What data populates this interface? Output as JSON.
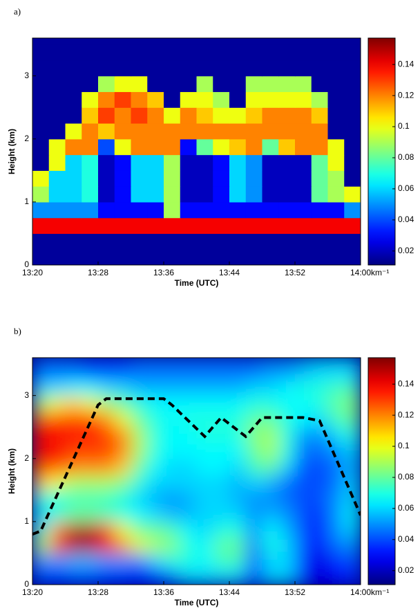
{
  "chart_data": [
    {
      "type": "heatmap",
      "label": "a)",
      "xlabel": "Time (UTC)",
      "ylabel": "Height (km)",
      "colorbar_label": "km⁻¹",
      "colormap": "jet",
      "smooth": false,
      "xlim": [
        "13:20",
        "14:00"
      ],
      "xticks": [
        "13:20",
        "13:28",
        "13:36",
        "13:44",
        "13:52",
        "14:00"
      ],
      "ylim": [
        0,
        3.6
      ],
      "yticks": [
        0,
        1,
        2,
        3
      ],
      "clim": [
        0.011,
        0.157
      ],
      "cticks": [
        0.02,
        0.04,
        0.06,
        0.08,
        0.1,
        0.12,
        0.14
      ],
      "x": [
        "13:20",
        "13:22",
        "13:24",
        "13:26",
        "13:28",
        "13:30",
        "13:32",
        "13:34",
        "13:36",
        "13:38",
        "13:40",
        "13:42",
        "13:44",
        "13:46",
        "13:48",
        "13:50",
        "13:52",
        "13:54",
        "13:56",
        "13:58",
        "14:00"
      ],
      "y": [
        0,
        0.25,
        0.5,
        0.75,
        1,
        1.25,
        1.5,
        1.75,
        2,
        2.25,
        2.5,
        2.75,
        3,
        3.25,
        3.5,
        3.6
      ],
      "z": [
        [
          0.015,
          0.015,
          0.015,
          0.015,
          0.015,
          0.015,
          0.015,
          0.015,
          0.015,
          0.015,
          0.015,
          0.015,
          0.015,
          0.015,
          0.015,
          0.015,
          0.015,
          0.015,
          0.015,
          0.015
        ],
        [
          0.015,
          0.015,
          0.015,
          0.015,
          0.015,
          0.015,
          0.015,
          0.015,
          0.015,
          0.015,
          0.015,
          0.015,
          0.015,
          0.015,
          0.015,
          0.015,
          0.015,
          0.015,
          0.015,
          0.015
        ],
        [
          0.14,
          0.14,
          0.14,
          0.14,
          0.14,
          0.14,
          0.14,
          0.14,
          0.14,
          0.14,
          0.14,
          0.14,
          0.14,
          0.14,
          0.14,
          0.14,
          0.14,
          0.14,
          0.14,
          0.14
        ],
        [
          0.05,
          0.05,
          0.05,
          0.05,
          0.03,
          0.03,
          0.03,
          0.03,
          0.09,
          0.03,
          0.03,
          0.03,
          0.03,
          0.03,
          0.03,
          0.03,
          0.03,
          0.03,
          0.03,
          0.05
        ],
        [
          0.09,
          0.06,
          0.06,
          0.07,
          0.02,
          0.03,
          0.06,
          0.06,
          0.09,
          0.02,
          0.02,
          0.03,
          0.06,
          0.05,
          0.02,
          0.02,
          0.02,
          0.08,
          0.09,
          0.1
        ],
        [
          0.1,
          0.06,
          0.06,
          0.07,
          0.02,
          0.03,
          0.06,
          0.06,
          0.09,
          0.02,
          0.02,
          0.03,
          0.06,
          0.05,
          0.02,
          0.02,
          0.02,
          0.08,
          0.09,
          0.015
        ],
        [
          0.015,
          0.1,
          0.06,
          0.07,
          0.02,
          0.03,
          0.06,
          0.06,
          0.09,
          0.02,
          0.02,
          0.03,
          0.06,
          0.05,
          0.02,
          0.02,
          0.02,
          0.08,
          0.1,
          0.015
        ],
        [
          0.015,
          0.1,
          0.12,
          0.12,
          0.04,
          0.1,
          0.12,
          0.12,
          0.12,
          0.03,
          0.08,
          0.1,
          0.11,
          0.12,
          0.08,
          0.11,
          0.12,
          0.12,
          0.1,
          0.015
        ],
        [
          0.015,
          0.015,
          0.1,
          0.12,
          0.11,
          0.12,
          0.12,
          0.12,
          0.12,
          0.12,
          0.12,
          0.12,
          0.12,
          0.12,
          0.12,
          0.12,
          0.12,
          0.12,
          0.015,
          0.015
        ],
        [
          0.015,
          0.015,
          0.015,
          0.11,
          0.13,
          0.12,
          0.13,
          0.12,
          0.1,
          0.12,
          0.11,
          0.1,
          0.1,
          0.11,
          0.12,
          0.12,
          0.12,
          0.11,
          0.015,
          0.015
        ],
        [
          0.015,
          0.015,
          0.015,
          0.1,
          0.12,
          0.13,
          0.12,
          0.11,
          0.015,
          0.1,
          0.1,
          0.09,
          0.015,
          0.1,
          0.1,
          0.1,
          0.1,
          0.09,
          0.015,
          0.015
        ],
        [
          0.015,
          0.015,
          0.015,
          0.015,
          0.09,
          0.1,
          0.1,
          0.015,
          0.015,
          0.015,
          0.09,
          0.015,
          0.015,
          0.09,
          0.09,
          0.09,
          0.09,
          0.015,
          0.015,
          0.015
        ],
        [
          0.015,
          0.015,
          0.015,
          0.015,
          0.015,
          0.015,
          0.015,
          0.015,
          0.015,
          0.015,
          0.015,
          0.015,
          0.015,
          0.015,
          0.015,
          0.015,
          0.015,
          0.015,
          0.015,
          0.015
        ],
        [
          0.015,
          0.015,
          0.015,
          0.015,
          0.015,
          0.015,
          0.015,
          0.015,
          0.015,
          0.015,
          0.015,
          0.015,
          0.015,
          0.015,
          0.015,
          0.015,
          0.015,
          0.015,
          0.015,
          0.015
        ],
        [
          0.015,
          0.015,
          0.015,
          0.015,
          0.015,
          0.015,
          0.015,
          0.015,
          0.015,
          0.015,
          0.015,
          0.015,
          0.015,
          0.015,
          0.015,
          0.015,
          0.015,
          0.015,
          0.015,
          0.015
        ]
      ]
    },
    {
      "type": "heatmap",
      "label": "b)",
      "xlabel": "Time (UTC)",
      "ylabel": "Height (km)",
      "colorbar_label": "km⁻¹",
      "colormap": "jet",
      "smooth": true,
      "xlim": [
        "13:20",
        "14:00"
      ],
      "xticks": [
        "13:20",
        "13:28",
        "13:36",
        "13:44",
        "13:52",
        "14:00"
      ],
      "ylim": [
        0,
        3.6
      ],
      "yticks": [
        0,
        1,
        2,
        3
      ],
      "clim": [
        0.011,
        0.157
      ],
      "cticks": [
        0.02,
        0.04,
        0.06,
        0.08,
        0.1,
        0.12,
        0.14
      ],
      "x": [
        "13:20",
        "13:22",
        "13:24",
        "13:26",
        "13:28",
        "13:30",
        "13:32",
        "13:34",
        "13:36",
        "13:38",
        "13:40",
        "13:42",
        "13:44",
        "13:46",
        "13:48",
        "13:50",
        "13:52",
        "13:54",
        "13:56",
        "13:58",
        "14:00"
      ],
      "y": [
        0,
        0.25,
        0.5,
        0.75,
        1,
        1.25,
        1.5,
        1.75,
        2,
        2.25,
        2.5,
        2.75,
        3,
        3.25,
        3.5,
        3.6
      ],
      "z": [
        [
          0.04,
          0.035,
          0.04,
          0.04,
          0.035,
          0.035,
          0.03,
          0.035,
          0.045,
          0.06,
          0.06,
          0.06,
          0.06,
          0.035,
          0.06,
          0.06,
          0.03,
          0.025,
          0.03,
          0.035
        ],
        [
          0.05,
          0.05,
          0.055,
          0.055,
          0.05,
          0.05,
          0.045,
          0.06,
          0.07,
          0.07,
          0.065,
          0.075,
          0.075,
          0.04,
          0.06,
          0.06,
          0.035,
          0.025,
          0.035,
          0.04
        ],
        [
          0.09,
          0.13,
          0.15,
          0.15,
          0.14,
          0.12,
          0.1,
          0.09,
          0.085,
          0.07,
          0.065,
          0.08,
          0.08,
          0.045,
          0.07,
          0.06,
          0.04,
          0.03,
          0.045,
          0.05
        ],
        [
          0.07,
          0.12,
          0.15,
          0.15,
          0.14,
          0.1,
          0.08,
          0.08,
          0.075,
          0.065,
          0.06,
          0.07,
          0.07,
          0.05,
          0.065,
          0.055,
          0.04,
          0.03,
          0.05,
          0.06
        ],
        [
          0.06,
          0.07,
          0.08,
          0.08,
          0.075,
          0.07,
          0.065,
          0.06,
          0.055,
          0.055,
          0.06,
          0.06,
          0.06,
          0.05,
          0.055,
          0.05,
          0.04,
          0.035,
          0.05,
          0.065
        ],
        [
          0.07,
          0.07,
          0.075,
          0.075,
          0.075,
          0.07,
          0.06,
          0.055,
          0.05,
          0.055,
          0.06,
          0.06,
          0.055,
          0.05,
          0.05,
          0.045,
          0.04,
          0.04,
          0.05,
          0.06
        ],
        [
          0.11,
          0.1,
          0.09,
          0.09,
          0.09,
          0.085,
          0.07,
          0.06,
          0.06,
          0.06,
          0.06,
          0.06,
          0.055,
          0.06,
          0.055,
          0.045,
          0.04,
          0.04,
          0.045,
          0.06
        ],
        [
          0.13,
          0.13,
          0.12,
          0.12,
          0.12,
          0.11,
          0.08,
          0.065,
          0.06,
          0.06,
          0.065,
          0.065,
          0.06,
          0.075,
          0.08,
          0.06,
          0.04,
          0.04,
          0.045,
          0.055
        ],
        [
          0.14,
          0.14,
          0.13,
          0.13,
          0.13,
          0.12,
          0.09,
          0.07,
          0.065,
          0.065,
          0.065,
          0.065,
          0.065,
          0.08,
          0.09,
          0.07,
          0.045,
          0.045,
          0.05,
          0.06
        ],
        [
          0.14,
          0.14,
          0.135,
          0.135,
          0.13,
          0.12,
          0.09,
          0.07,
          0.065,
          0.065,
          0.07,
          0.07,
          0.07,
          0.085,
          0.09,
          0.07,
          0.05,
          0.05,
          0.06,
          0.07
        ],
        [
          0.13,
          0.13,
          0.13,
          0.13,
          0.12,
          0.1,
          0.08,
          0.07,
          0.065,
          0.07,
          0.07,
          0.07,
          0.07,
          0.08,
          0.08,
          0.07,
          0.065,
          0.06,
          0.075,
          0.08
        ],
        [
          0.09,
          0.1,
          0.11,
          0.1,
          0.09,
          0.08,
          0.07,
          0.065,
          0.065,
          0.065,
          0.065,
          0.065,
          0.065,
          0.07,
          0.07,
          0.065,
          0.065,
          0.07,
          0.08,
          0.085
        ],
        [
          0.06,
          0.06,
          0.065,
          0.065,
          0.06,
          0.06,
          0.055,
          0.055,
          0.055,
          0.055,
          0.055,
          0.055,
          0.055,
          0.06,
          0.06,
          0.065,
          0.07,
          0.07,
          0.075,
          0.075
        ],
        [
          0.045,
          0.045,
          0.045,
          0.04,
          0.04,
          0.04,
          0.045,
          0.045,
          0.045,
          0.045,
          0.045,
          0.045,
          0.045,
          0.045,
          0.05,
          0.05,
          0.055,
          0.06,
          0.06,
          0.06
        ],
        [
          0.045,
          0.045,
          0.045,
          0.04,
          0.04,
          0.04,
          0.045,
          0.045,
          0.045,
          0.045,
          0.045,
          0.045,
          0.045,
          0.045,
          0.05,
          0.05,
          0.055,
          0.06,
          0.06,
          0.06
        ]
      ],
      "line": {
        "color": "#000000",
        "dashed": true,
        "x": [
          "13:20",
          "13:21",
          "13:28",
          "13:29",
          "13:36",
          "13:37",
          "13:41",
          "13:43",
          "13:46",
          "13:48",
          "13:53",
          "13:55",
          "14:00"
        ],
        "values": [
          0.8,
          0.85,
          2.85,
          2.95,
          2.95,
          2.85,
          2.35,
          2.65,
          2.35,
          2.65,
          2.65,
          2.6,
          1.1
        ]
      }
    }
  ]
}
